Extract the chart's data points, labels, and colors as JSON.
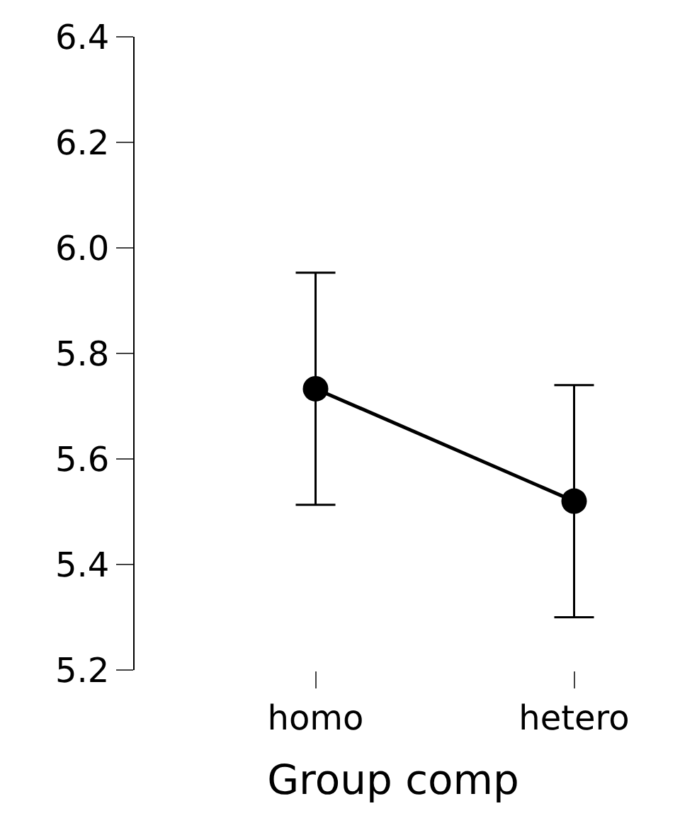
{
  "chart_data": {
    "type": "line",
    "xlabel": "Group comp",
    "categories": [
      "homo",
      "hetero"
    ],
    "series": [
      {
        "color": "#000000",
        "values": [
          5.733,
          5.52
        ],
        "errors": [
          0.22,
          0.22
        ]
      }
    ],
    "ylim": [
      5.2,
      6.4
    ],
    "yticks": [
      {
        "value": 5.2,
        "label": "5.2"
      },
      {
        "value": 5.4,
        "label": "5.4"
      },
      {
        "value": 5.6,
        "label": "5.6"
      },
      {
        "value": 5.8,
        "label": "5.8"
      },
      {
        "value": 6.0,
        "label": "6.0"
      },
      {
        "value": 6.2,
        "label": "6.2"
      },
      {
        "value": 6.4,
        "label": "6.4"
      }
    ],
    "legend": false,
    "marker": "circle",
    "line_style": "solid"
  }
}
